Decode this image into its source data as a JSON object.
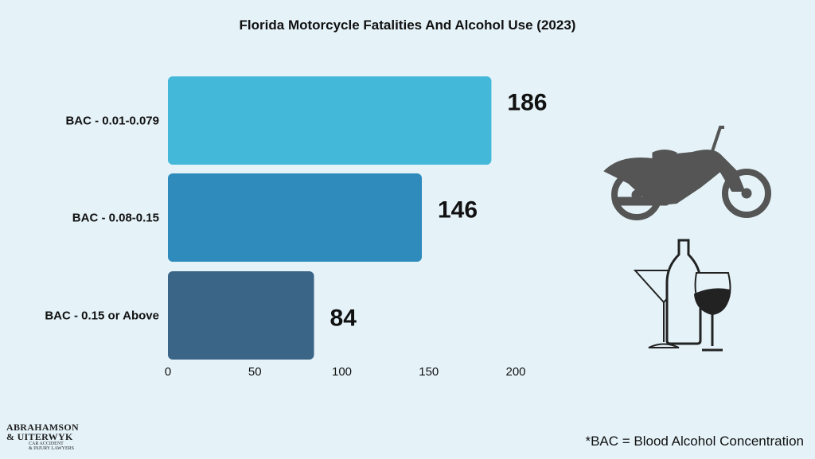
{
  "chart_data": {
    "type": "bar",
    "orientation": "horizontal",
    "title": "Florida Motorcycle Fatalities And Alcohol Use (2023)",
    "categories": [
      "BAC - 0.01-0.079",
      "BAC - 0.08-0.15",
      "BAC - 0.15 or Above"
    ],
    "values": [
      186,
      146,
      84
    ],
    "xlim": [
      0,
      200
    ],
    "xticks": [
      "0",
      "50",
      "100",
      "150",
      "200"
    ],
    "grid": false,
    "colors": [
      "#43b8d8",
      "#2e8bbb",
      "#3a6587"
    ]
  },
  "footnote": "*BAC = Blood Alcohol Concentration",
  "logo": {
    "line1": "ABRAHAMSON",
    "line2": "& UITERWYK",
    "line3": "CAR ACCIDENT",
    "line4": "& INJURY LAWYERS"
  },
  "icons": [
    "motorcycle-icon",
    "drinks-icon"
  ]
}
